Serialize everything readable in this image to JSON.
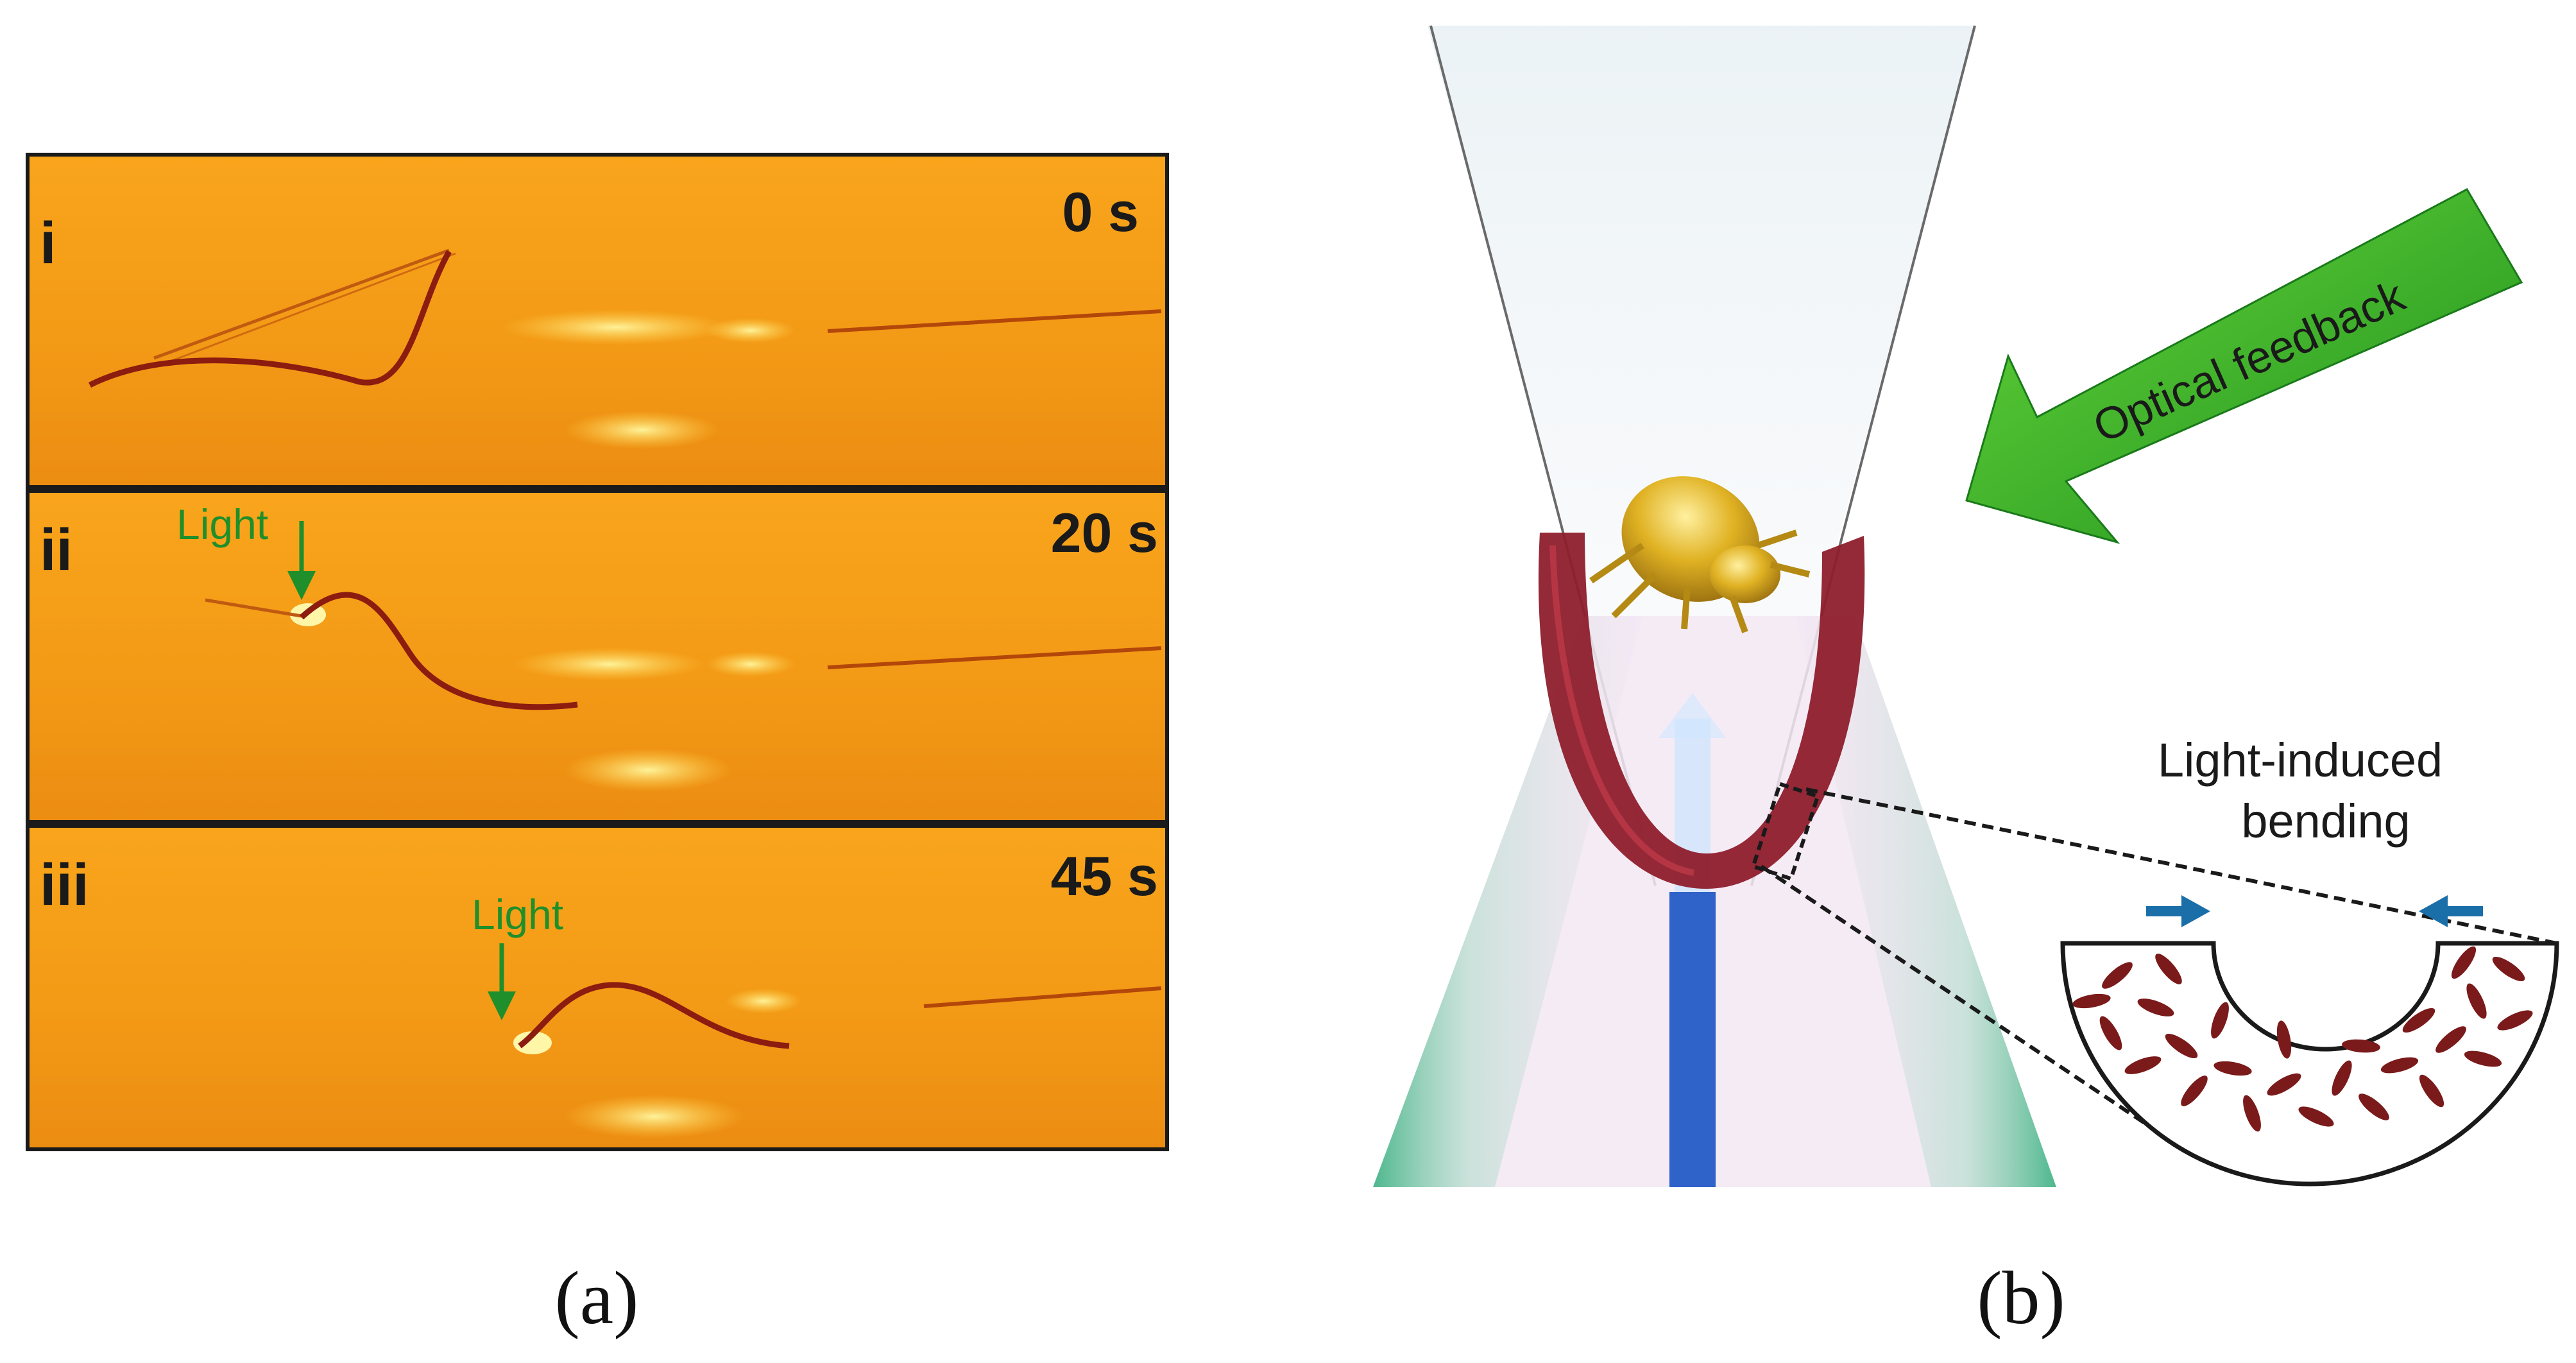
{
  "panel_a": {
    "caption": "(a)",
    "frames": [
      {
        "roman": "i",
        "time": "0 s",
        "light_label": ""
      },
      {
        "roman": "ii",
        "time": "20 s",
        "light_label": "Light"
      },
      {
        "roman": "iii",
        "time": "45 s",
        "light_label": "Light"
      }
    ]
  },
  "panel_b": {
    "caption": "(b)",
    "arrow_label": "Optical feedback",
    "inset_title_line1": "Light-induced",
    "inset_title_line2": "bending"
  },
  "colors": {
    "frame_orange": "#f5a21a",
    "arrow_green": "#3fbf22",
    "light_green": "#1e8f2a",
    "cup_red": "#8e1d2c",
    "beam_blue": "#2f63c9",
    "push_arrow_blue": "#1b6fa8",
    "beetle_gold": "#d8a91c"
  }
}
